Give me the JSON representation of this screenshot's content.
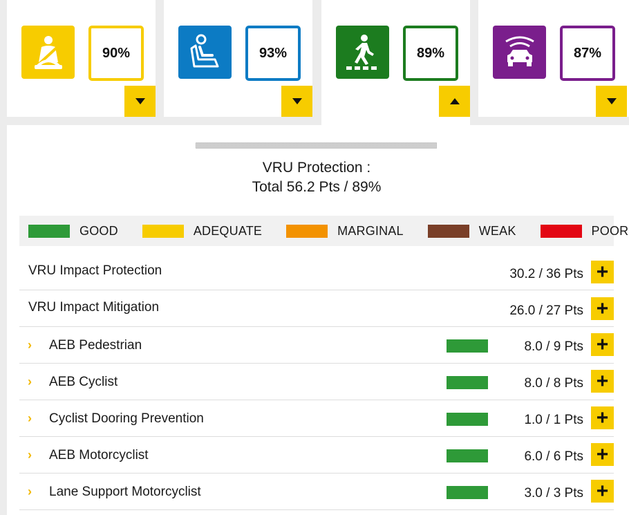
{
  "cards": [
    {
      "id": "adult",
      "percent": "90%",
      "color": "#f7cc00",
      "icon": "adult-occupant-icon",
      "toggle": "down"
    },
    {
      "id": "child",
      "percent": "93%",
      "color": "#0c7bc4",
      "icon": "child-seat-icon",
      "toggle": "down"
    },
    {
      "id": "vru",
      "percent": "89%",
      "color": "#1c7c1f",
      "icon": "pedestrian-icon",
      "toggle": "up"
    },
    {
      "id": "safety",
      "percent": "87%",
      "color": "#7a1e8c",
      "icon": "car-sensor-icon",
      "toggle": "down"
    }
  ],
  "section": {
    "title": "VRU Protection :",
    "subtitle": "Total 56.2 Pts / 89%"
  },
  "legend": [
    {
      "label": "GOOD",
      "color": "#2e9a38"
    },
    {
      "label": "ADEQUATE",
      "color": "#f7cc00"
    },
    {
      "label": "MARGINAL",
      "color": "#f39200"
    },
    {
      "label": "WEAK",
      "color": "#7a3f28"
    },
    {
      "label": "POOR",
      "color": "#e30613"
    }
  ],
  "rows": [
    {
      "label": "VRU Impact Protection",
      "score": "30.2 / 36 Pts",
      "level": "main"
    },
    {
      "label": "VRU Impact Mitigation",
      "score": "26.0 / 27 Pts",
      "level": "main"
    },
    {
      "label": "AEB Pedestrian",
      "score": "8.0 / 9 Pts",
      "level": "sub",
      "rating": "GOOD"
    },
    {
      "label": "AEB Cyclist",
      "score": "8.0 / 8 Pts",
      "level": "sub",
      "rating": "GOOD"
    },
    {
      "label": "Cyclist Dooring Prevention",
      "score": "1.0 / 1 Pts",
      "level": "sub",
      "rating": "GOOD"
    },
    {
      "label": "AEB Motorcyclist",
      "score": "6.0 / 6 Pts",
      "level": "sub",
      "rating": "GOOD"
    },
    {
      "label": "Lane Support Motorcyclist",
      "score": "3.0 / 3 Pts",
      "level": "sub",
      "rating": "GOOD"
    }
  ]
}
